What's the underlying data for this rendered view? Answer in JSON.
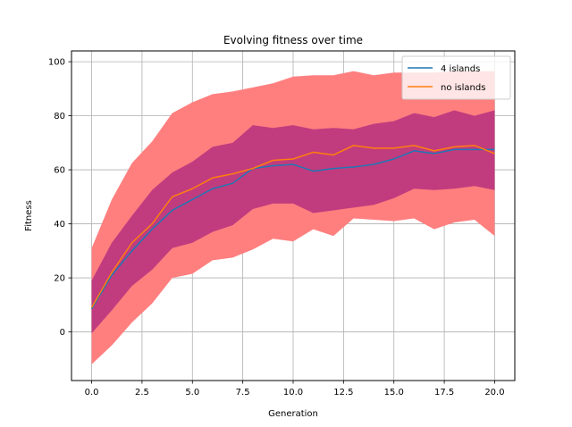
{
  "chart_data": {
    "type": "line",
    "title": "Evolving fitness over time",
    "xlabel": "Generation",
    "ylabel": "Fitness",
    "xlim": [
      -1,
      21
    ],
    "ylim": [
      -18,
      104
    ],
    "xticks": [
      0.0,
      2.5,
      5.0,
      7.5,
      10.0,
      12.5,
      15.0,
      17.5,
      20.0
    ],
    "xtick_labels": [
      "0.0",
      "2.5",
      "5.0",
      "7.5",
      "10.0",
      "12.5",
      "15.0",
      "17.5",
      "20.0"
    ],
    "yticks": [
      0,
      20,
      40,
      60,
      80,
      100
    ],
    "ytick_labels": [
      "0",
      "20",
      "40",
      "60",
      "80",
      "100"
    ],
    "grid": true,
    "legend_position": "top-right",
    "x": [
      0,
      1,
      2,
      3,
      4,
      5,
      6,
      7,
      8,
      9,
      10,
      11,
      12,
      13,
      14,
      15,
      16,
      17,
      18,
      19,
      20
    ],
    "series": [
      {
        "name": "4 islands",
        "color": "#1f77b4",
        "values": [
          8.5,
          21,
          30,
          38,
          45,
          49,
          53,
          55,
          60.5,
          61.5,
          62,
          59.5,
          60.5,
          61,
          62,
          64,
          67,
          66,
          67.5,
          67.5,
          67.5
        ],
        "band_lower": [
          -0.5,
          8,
          17,
          23,
          31,
          33,
          37,
          39.5,
          45.5,
          47.5,
          47.5,
          44,
          45,
          46,
          47,
          49.5,
          53,
          52.5,
          53,
          54,
          52.5
        ],
        "band_upper": [
          19,
          33,
          43,
          52.5,
          59,
          63,
          68.5,
          70,
          76.5,
          75.5,
          76.5,
          75,
          75.5,
          75,
          77,
          78,
          81,
          79.5,
          82,
          80,
          82
        ]
      },
      {
        "name": "no islands",
        "color": "#ff7f0e",
        "values": [
          9,
          22,
          33,
          40,
          50,
          53,
          57,
          58.5,
          60.5,
          63.5,
          64,
          66.5,
          65.5,
          69,
          68,
          68,
          69,
          67,
          68.5,
          69,
          66
        ],
        "band_lower": [
          -12,
          -5,
          3.5,
          10.5,
          20,
          21.5,
          26.5,
          27.5,
          30.5,
          34.5,
          33.5,
          38,
          35.5,
          42,
          41.5,
          41,
          42,
          38,
          40.5,
          41.5,
          35.5
        ],
        "band_upper": [
          31,
          49,
          62.5,
          70.5,
          81,
          85,
          88,
          89,
          90.5,
          92,
          94.5,
          95,
          95,
          96.5,
          95,
          96,
          96,
          96,
          96.5,
          96.5,
          96.5
        ]
      }
    ],
    "band_colors": {
      "outer": "#ff7f7f",
      "inner": "#c13c7e"
    }
  }
}
